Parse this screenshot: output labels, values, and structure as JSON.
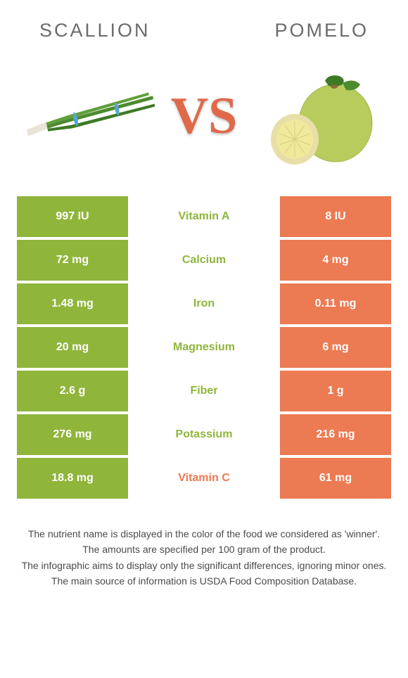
{
  "colors": {
    "left_green": "#8fb53b",
    "right_orange": "#ec7a52",
    "row_bg_left": "#8fb53b",
    "row_bg_right": "#ec7a52",
    "text_gray": "#646464",
    "winner_green": "#8fb53b",
    "winner_orange": "#ec7a52"
  },
  "header": {
    "left": "SCALLION",
    "right": "POMELO"
  },
  "vs": "VS",
  "rows": [
    {
      "left": "997 IU",
      "mid": "Vitamin A",
      "right": "8 IU",
      "winner": "left"
    },
    {
      "left": "72 mg",
      "mid": "Calcium",
      "right": "4 mg",
      "winner": "left"
    },
    {
      "left": "1.48 mg",
      "mid": "Iron",
      "right": "0.11 mg",
      "winner": "left"
    },
    {
      "left": "20 mg",
      "mid": "Magnesium",
      "right": "6 mg",
      "winner": "left"
    },
    {
      "left": "2.6 g",
      "mid": "Fiber",
      "right": "1 g",
      "winner": "left"
    },
    {
      "left": "276 mg",
      "mid": "Potassium",
      "right": "216 mg",
      "winner": "left"
    },
    {
      "left": "18.8 mg",
      "mid": "Vitamin C",
      "right": "61 mg",
      "winner": "right"
    }
  ],
  "notes": [
    "The nutrient name is displayed in the color of the food we considered as 'winner'.",
    "The amounts are specified per 100 gram of the product.",
    "The infographic aims to display only the significant differences, ignoring minor ones.",
    "The main source of information is USDA Food Composition Database."
  ]
}
